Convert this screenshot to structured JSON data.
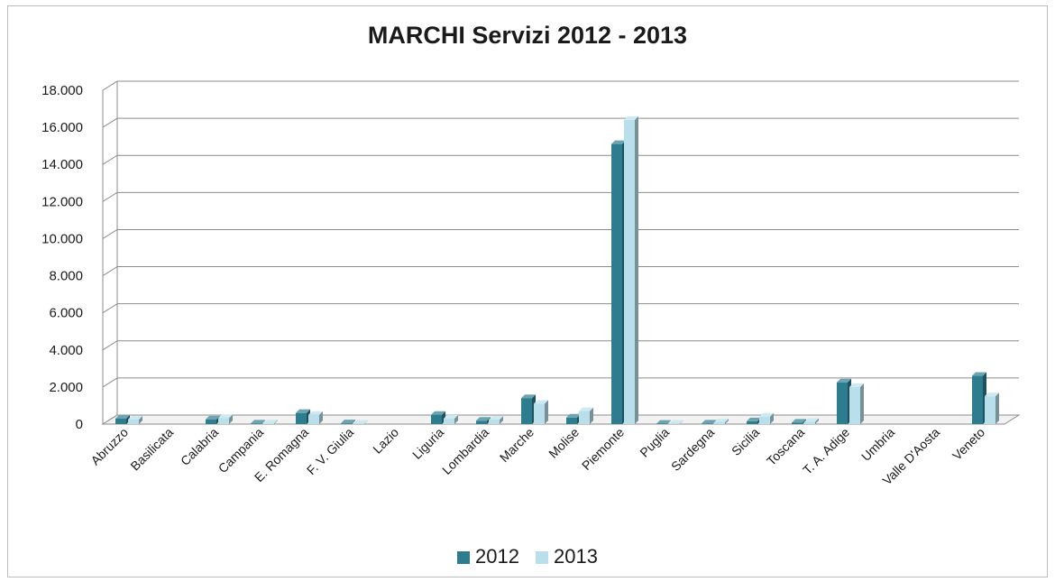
{
  "chart_data": {
    "type": "bar",
    "title": "MARCHI Servizi 2012 - 2013",
    "xlabel": "",
    "ylabel": "",
    "categories": [
      "Abruzzo",
      "Basilicata",
      "Calabria",
      "Campania",
      "E. Romagna",
      "F. V. Giulia",
      "Lazio",
      "Liguria",
      "Lombardia",
      "Marche",
      "Molise",
      "Piemonte",
      "Puglia",
      "Sardegna",
      "Sicilia",
      "Toscana",
      "T. A. Adige",
      "Umbria",
      "Valle D'Aosta",
      "Veneto"
    ],
    "series": [
      {
        "name": "2012",
        "color": "#2e7d8f",
        "values": [
          300,
          0,
          250,
          30,
          600,
          40,
          0,
          500,
          180,
          1400,
          350,
          15100,
          20,
          30,
          150,
          80,
          2250,
          0,
          0,
          2600
        ]
      },
      {
        "name": "2013",
        "color": "#b9dfea",
        "values": [
          250,
          0,
          330,
          40,
          500,
          20,
          0,
          300,
          240,
          1100,
          700,
          16400,
          20,
          100,
          400,
          120,
          2000,
          0,
          0,
          1500
        ]
      }
    ],
    "ylim": [
      0,
      18000
    ],
    "yticks": [
      "0",
      "2.000",
      "4.000",
      "6.000",
      "8.000",
      "10.000",
      "12.000",
      "14.000",
      "16.000",
      "18.000"
    ],
    "grid": true,
    "legend_position": "bottom"
  }
}
